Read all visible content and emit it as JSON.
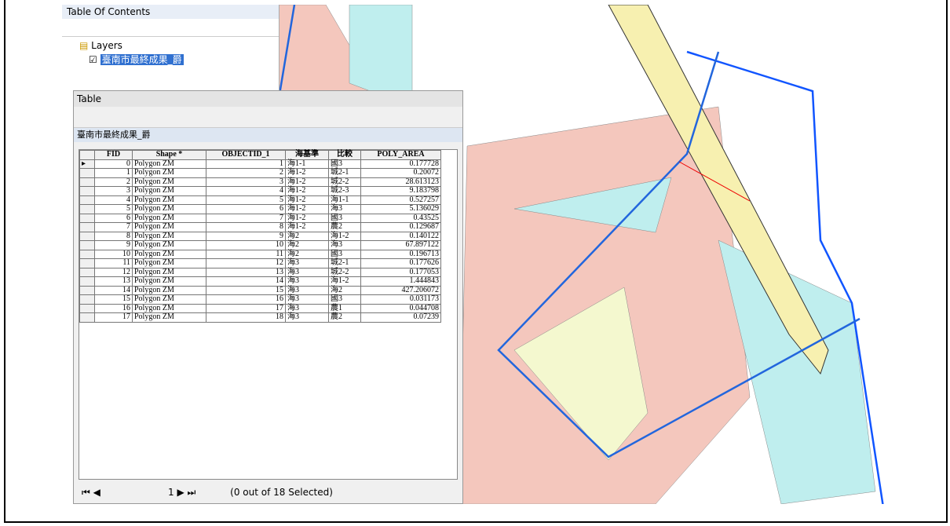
{
  "toc": {
    "title": "Table Of Contents",
    "root": "Layers",
    "layer": "臺南市最終成果_爵"
  },
  "table_window": {
    "title": "Table",
    "tab": "臺南市最終成果_爵",
    "columns": [
      "FID",
      "Shape *",
      "OBJECTID_1",
      "海基準",
      "比較",
      "POLY_AREA"
    ],
    "rows": [
      [
        "0",
        "Polygon ZM",
        "1",
        "海1-1",
        "國3",
        "0.177728"
      ],
      [
        "1",
        "Polygon ZM",
        "2",
        "海1-2",
        "城2-1",
        "0.20072"
      ],
      [
        "2",
        "Polygon ZM",
        "3",
        "海1-2",
        "城2-2",
        "28.613123"
      ],
      [
        "3",
        "Polygon ZM",
        "4",
        "海1-2",
        "城2-3",
        "9.183798"
      ],
      [
        "4",
        "Polygon ZM",
        "5",
        "海1-2",
        "海1-1",
        "0.527257"
      ],
      [
        "5",
        "Polygon ZM",
        "6",
        "海1-2",
        "海3",
        "5.136029"
      ],
      [
        "6",
        "Polygon ZM",
        "7",
        "海1-2",
        "國3",
        "0.43525"
      ],
      [
        "7",
        "Polygon ZM",
        "8",
        "海1-2",
        "農2",
        "0.129687"
      ],
      [
        "8",
        "Polygon ZM",
        "9",
        "海2",
        "海1-2",
        "0.140122"
      ],
      [
        "9",
        "Polygon ZM",
        "10",
        "海2",
        "海3",
        "67.897122"
      ],
      [
        "10",
        "Polygon ZM",
        "11",
        "海2",
        "國3",
        "0.196713"
      ],
      [
        "11",
        "Polygon ZM",
        "12",
        "海3",
        "城2-1",
        "0.177626"
      ],
      [
        "12",
        "Polygon ZM",
        "13",
        "海3",
        "城2-2",
        "0.177053"
      ],
      [
        "13",
        "Polygon ZM",
        "14",
        "海3",
        "海1-2",
        "1.444843"
      ],
      [
        "14",
        "Polygon ZM",
        "15",
        "海3",
        "海2",
        "427.206072"
      ],
      [
        "15",
        "Polygon ZM",
        "16",
        "海3",
        "國3",
        "0.031173"
      ],
      [
        "16",
        "Polygon ZM",
        "17",
        "海3",
        "農1",
        "0.044708"
      ],
      [
        "17",
        "Polygon ZM",
        "18",
        "海3",
        "農2",
        "0.07239"
      ]
    ],
    "footer": {
      "record": "1",
      "status": "(0 out of 18 Selected)"
    }
  }
}
